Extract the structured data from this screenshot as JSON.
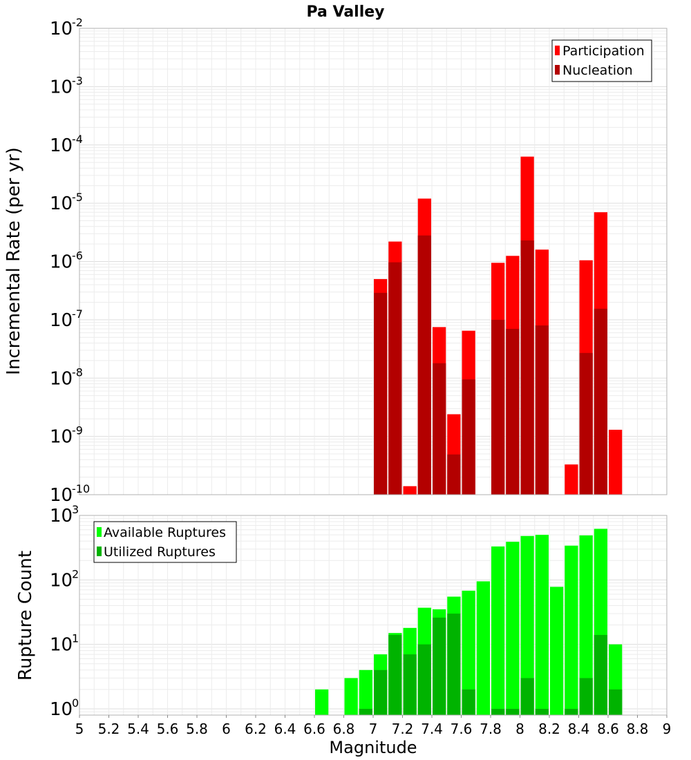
{
  "chart_data": [
    {
      "type": "bar",
      "title": "Pa Valley",
      "ylabel": "Incremental Rate (per yr)",
      "xlabel": "",
      "yscale": "log",
      "ylim": [
        1e-10,
        0.01
      ],
      "xlim": [
        5,
        9
      ],
      "bar_width": 0.1,
      "grid": true,
      "legend_position": "top-right",
      "series": [
        {
          "name": "Participation",
          "color": "#ff0000",
          "x": [
            7.0,
            7.1,
            7.2,
            7.3,
            7.4,
            7.5,
            7.6,
            7.8,
            7.9,
            8.0,
            8.1,
            8.3,
            8.4,
            8.5,
            8.6
          ],
          "values": [
            5e-07,
            2.2e-06,
            1.4e-10,
            1.2e-05,
            7.5e-08,
            2.4e-09,
            6.5e-08,
            9.5e-07,
            1.25e-06,
            6.3e-05,
            1.6e-06,
            3.3e-10,
            1.05e-06,
            7e-06,
            1.3e-09
          ]
        },
        {
          "name": "Nucleation",
          "color": "#b30000",
          "x": [
            7.0,
            7.1,
            7.3,
            7.4,
            7.5,
            7.6,
            7.8,
            7.9,
            8.0,
            8.1,
            8.4,
            8.5
          ],
          "values": [
            2.9e-07,
            9.7e-07,
            2.8e-06,
            1.8e-08,
            4.9e-10,
            9.5e-09,
            1e-07,
            7e-08,
            2.3e-06,
            8e-08,
            2.7e-08,
            1.55e-07
          ]
        }
      ]
    },
    {
      "type": "bar",
      "title": "",
      "ylabel": "Rupture Count",
      "xlabel": "Magnitude",
      "yscale": "log",
      "ylim": [
        0.8,
        1000
      ],
      "xlim": [
        5,
        9
      ],
      "bar_width": 0.1,
      "grid": true,
      "legend_position": "top-left",
      "x_ticks": [
        "5",
        "5.2",
        "5.4",
        "5.6",
        "5.8",
        "6",
        "6.2",
        "6.4",
        "6.6",
        "6.8",
        "7",
        "7.2",
        "7.4",
        "7.6",
        "7.8",
        "8",
        "8.2",
        "8.4",
        "8.6",
        "8.8",
        "9"
      ],
      "series": [
        {
          "name": "Available Ruptures",
          "color": "#00ff00",
          "x": [
            6.6,
            6.8,
            6.9,
            7.0,
            7.1,
            7.2,
            7.3,
            7.4,
            7.5,
            7.6,
            7.7,
            7.8,
            7.9,
            8.0,
            8.1,
            8.2,
            8.3,
            8.4,
            8.5,
            8.6
          ],
          "values": [
            2,
            3,
            4,
            7,
            15,
            18,
            37,
            35,
            55,
            68,
            95,
            330,
            390,
            480,
            500,
            78,
            340,
            490,
            620,
            10
          ]
        },
        {
          "name": "Utilized Ruptures",
          "color": "#00b300",
          "x": [
            6.9,
            7.0,
            7.1,
            7.2,
            7.3,
            7.4,
            7.5,
            7.6,
            7.8,
            7.9,
            8.0,
            8.1,
            8.3,
            8.4,
            8.5,
            8.6
          ],
          "values": [
            1,
            4,
            14,
            7,
            10,
            26,
            30,
            2,
            1,
            1,
            3,
            1,
            1,
            3,
            14,
            2
          ]
        }
      ]
    }
  ]
}
